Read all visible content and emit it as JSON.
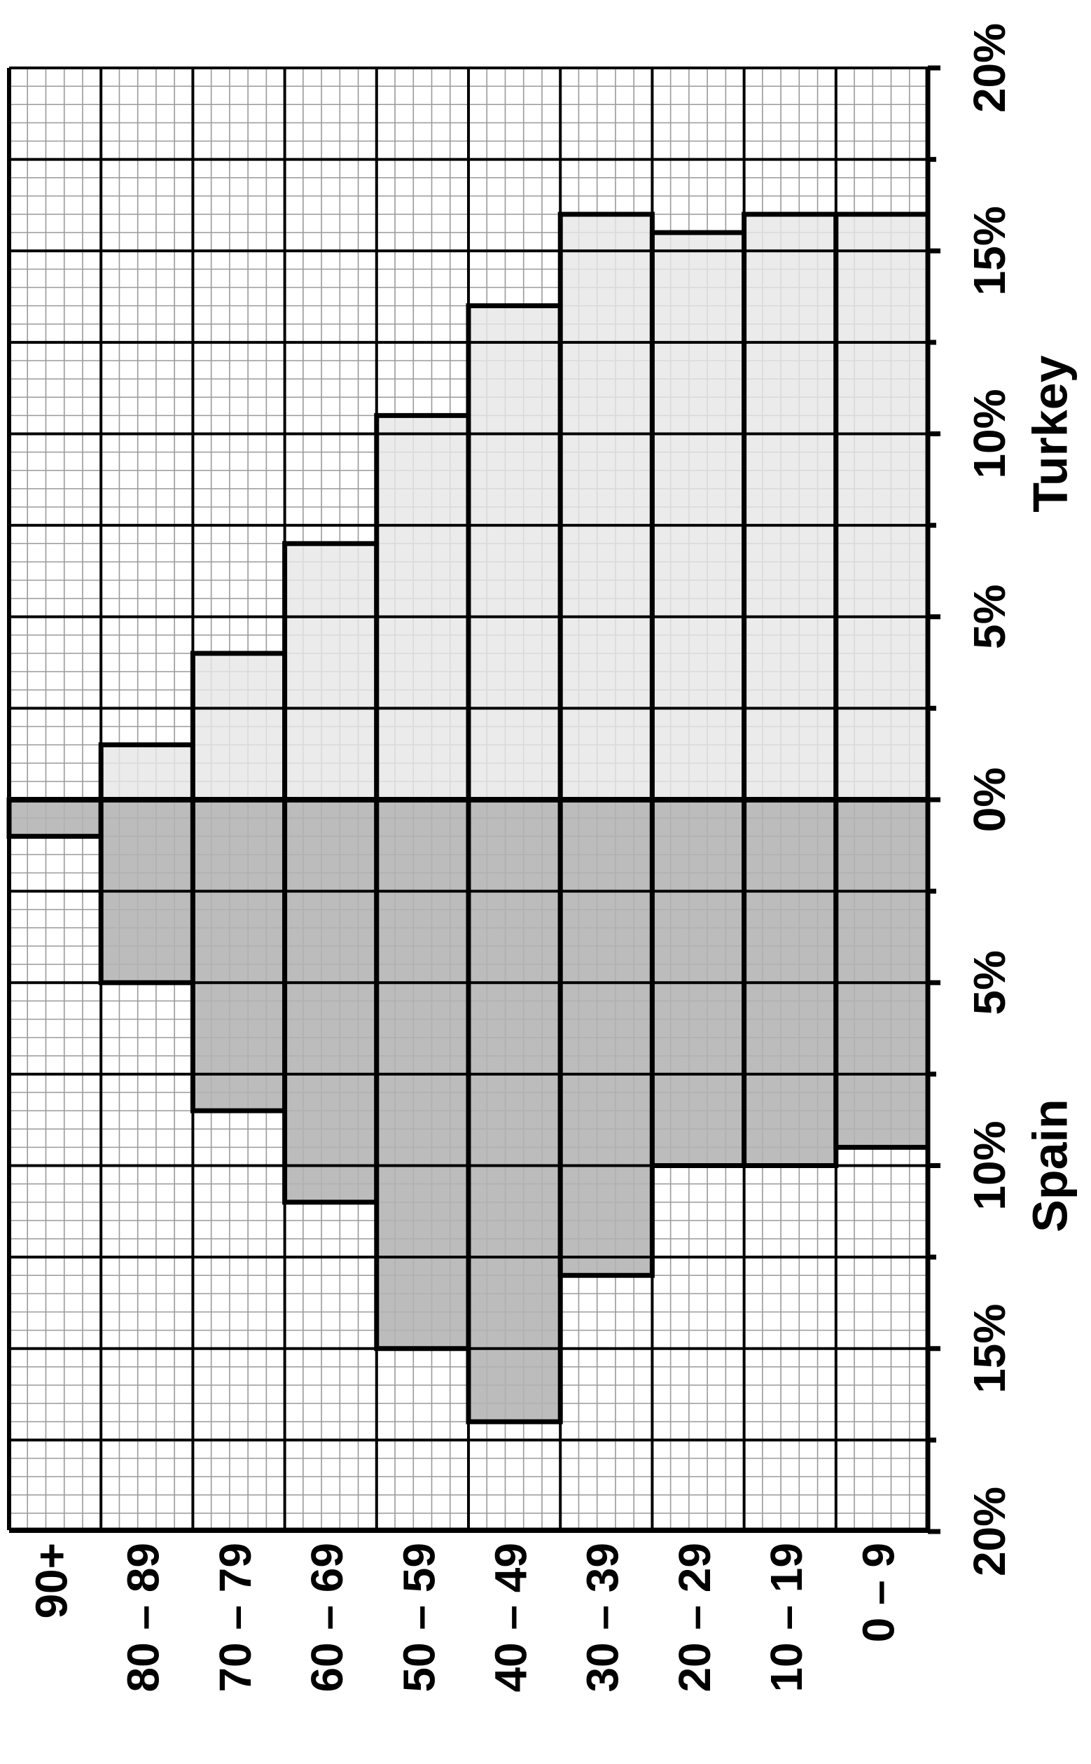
{
  "chart_data": {
    "type": "bar",
    "orientation": "population-pyramid",
    "categories": [
      "90+",
      "80 – 89",
      "70 – 79",
      "60 – 69",
      "50 – 59",
      "40 – 49",
      "30 – 39",
      "20 – 29",
      "10 – 19",
      "0 – 9"
    ],
    "series": [
      {
        "name": "Spain",
        "values": [
          1,
          5,
          8.5,
          11,
          15,
          17,
          13,
          10,
          10,
          9.5
        ],
        "color": "#b3b3b3"
      },
      {
        "name": "Turkey",
        "values": [
          0,
          1.5,
          4,
          7,
          10.5,
          13.5,
          16,
          15.5,
          16,
          16
        ],
        "color": "#e6e6e6"
      }
    ],
    "value_axis": {
      "min": 0,
      "max": 20,
      "tick_labels_spain": [
        "20%",
        "15%",
        "10%",
        "5%"
      ],
      "tick_labels_zero": "0%",
      "tick_labels_turkey": [
        "5%",
        "10%",
        "15%",
        "20%"
      ],
      "major_step": 2.5,
      "minor_step": 0.5
    },
    "grid": true
  }
}
